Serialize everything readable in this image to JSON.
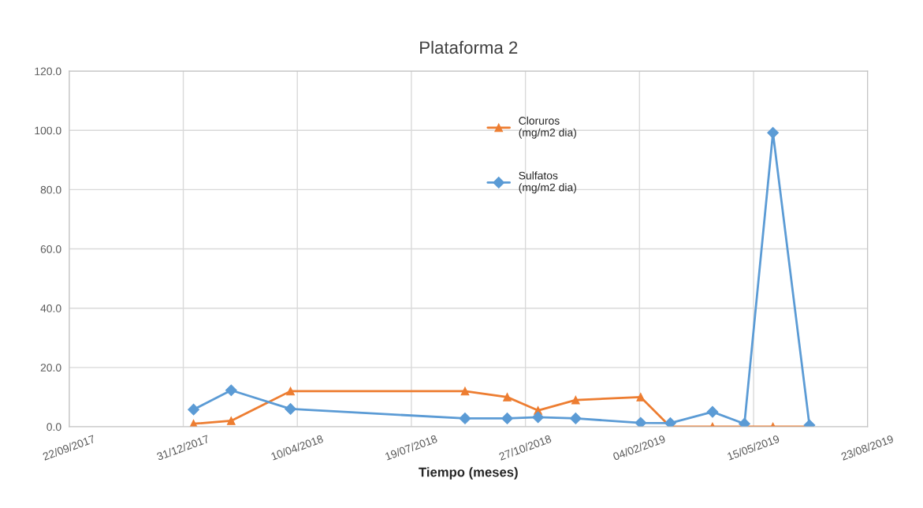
{
  "chart_data": {
    "type": "line",
    "title": "Plataforma 2",
    "xlabel": "Tiempo (meses)",
    "x": [
      "2018-01-09",
      "2018-02-11",
      "2018-04-04",
      "2018-09-04",
      "2018-10-11",
      "2018-11-07",
      "2018-12-10",
      "2019-02-05",
      "2019-03-03",
      "2019-04-09",
      "2019-05-07",
      "2019-06-01",
      "2019-07-03"
    ],
    "series": [
      {
        "name": "Cloruros\n(mg/m2 dia)",
        "color": "#ed7d31",
        "marker": "triangle",
        "values": [
          1.0,
          2.0,
          12.0,
          12.0,
          10.0,
          5.5,
          9.0,
          10.0,
          0.0,
          0.0,
          0.0,
          0.0,
          0.0
        ]
      },
      {
        "name": "Sulfatos\n(mg/m2 dia)",
        "color": "#5b9bd5",
        "marker": "diamond",
        "values": [
          5.8,
          12.3,
          6.0,
          2.8,
          2.8,
          3.2,
          2.8,
          1.3,
          1.2,
          5.0,
          1.0,
          99.2,
          0.5
        ]
      }
    ],
    "xlim": [
      "2017-09-22",
      "2019-08-23"
    ],
    "xticks": [
      {
        "value": "2017-09-22",
        "label": "22/09/2017"
      },
      {
        "value": "2017-12-31",
        "label": "31/12/2017"
      },
      {
        "value": "2018-04-10",
        "label": "10/04/2018"
      },
      {
        "value": "2018-07-19",
        "label": "19/07/2018"
      },
      {
        "value": "2018-10-27",
        "label": "27/10/2018"
      },
      {
        "value": "2019-02-04",
        "label": "04/02/2019"
      },
      {
        "value": "2019-05-15",
        "label": "15/05/2019"
      },
      {
        "value": "2019-08-23",
        "label": "23/08/2019"
      }
    ],
    "ylim": [
      0,
      120
    ],
    "yticks": [
      {
        "value": 0,
        "label": "0.0"
      },
      {
        "value": 20,
        "label": "20.0"
      },
      {
        "value": 40,
        "label": "40.0"
      },
      {
        "value": 60,
        "label": "60.0"
      },
      {
        "value": 80,
        "label": "80.0"
      },
      {
        "value": 100,
        "label": "100.0"
      },
      {
        "value": 120,
        "label": "120.0"
      }
    ],
    "grid": true,
    "legend": "top",
    "line_style": "solid"
  }
}
